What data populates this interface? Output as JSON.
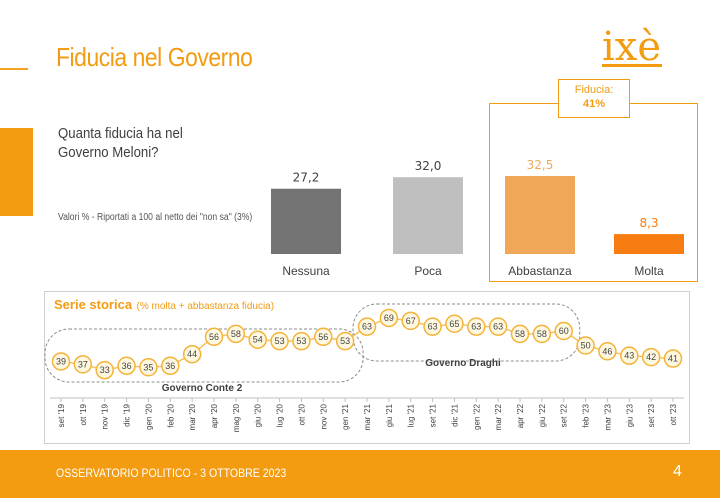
{
  "title": "Fiducia nel Governo",
  "logo_text": "ixè",
  "question": "Quanta fiducia ha nel Governo Meloni?",
  "note": "Valori % - Riportati a 100 al netto dei \"non sa\" (3%)",
  "fiducia_box": {
    "label": "Fiducia:",
    "value": "41%"
  },
  "series_title": "Serie storica",
  "series_subtitle": "(% molta + abbastanza fiducia)",
  "gov_labels": {
    "conte": "Governo Conte 2",
    "draghi": "Governo Draghi"
  },
  "footer": "OSSERVATORIO POLITICO - 3 OTTOBRE 2023",
  "page_number": "4",
  "colors": {
    "accent": "#f39c12",
    "nessuna": "#737373",
    "poca": "#bfbfbf",
    "abbastanza": "#f0a858",
    "molta": "#f77c12"
  },
  "chart_data": [
    {
      "type": "bar",
      "categories": [
        "Nessuna",
        "Poca",
        "Abbastanza",
        "Molta"
      ],
      "values": [
        27.2,
        32.0,
        32.5,
        8.3
      ],
      "value_labels": [
        "27,2",
        "32,0",
        "32,5",
        "8,3"
      ],
      "colors": [
        "#737373",
        "#bfbfbf",
        "#f0a858",
        "#f77c12"
      ],
      "highlight_value_colors": [
        "#404040",
        "#404040",
        "#f0a858",
        "#f77c12"
      ]
    },
    {
      "type": "line",
      "title": "Serie storica",
      "subtitle": "(% molta + abbastanza fiducia)",
      "x": [
        "set '19",
        "ott '19",
        "nov '19",
        "dic '19",
        "gen '20",
        "feb '20",
        "mar '20",
        "apr '20",
        "mag '20",
        "giu '20",
        "lug '20",
        "ott '20",
        "nov '20",
        "gen '21",
        "mar '21",
        "giu '21",
        "lug '21",
        "set '21",
        "dic '21",
        "gen '22",
        "mar '22",
        "apr '22",
        "giu '22",
        "set '22",
        "feb '23",
        "mar '23",
        "giu '23",
        "set '23",
        "ott '23"
      ],
      "values": [
        39,
        37,
        33,
        36,
        35,
        36,
        44,
        56,
        58,
        54,
        53,
        53,
        56,
        53,
        63,
        69,
        67,
        63,
        65,
        63,
        63,
        58,
        58,
        60,
        50,
        46,
        43,
        42,
        41
      ]
    }
  ]
}
